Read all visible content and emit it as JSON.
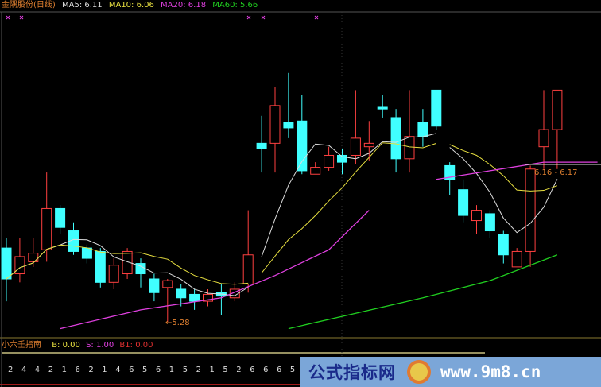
{
  "header": {
    "title": "金隅股份(日线)",
    "ma5": "MA5: 6.11",
    "ma10": "MA10: 6.06",
    "ma20": "MA20: 6.18",
    "ma60": "MA60: 5.66"
  },
  "indicator": {
    "name": "小六壬指南",
    "b": "B: 0.00",
    "s": "S: 1.00",
    "b1": "B1: 0.00",
    "values": [
      "2",
      "4",
      "4",
      "2",
      "1",
      "6",
      "2",
      "1",
      "4",
      "6",
      "5",
      "6",
      "1",
      "5",
      "2",
      "1",
      "5",
      "2",
      "6",
      "6",
      "6",
      "5"
    ]
  },
  "watermark": {
    "cn": "公式指标网",
    "url": "www.9m8.cn"
  },
  "colors": {
    "up": "#ff4040",
    "down": "#40ffff",
    "ma5": "#dddddd",
    "ma10": "#e8e040",
    "ma20": "#e040e0",
    "ma60": "#20d020",
    "background": "#000000"
  },
  "chart_data": {
    "type": "candlestick",
    "low_label": "←5.28",
    "range_label": "6.16 - 6.17",
    "ylim": [
      5.2,
      6.78
    ],
    "candles": [
      [
        5.71,
        5.77,
        5.4,
        5.53
      ],
      [
        5.56,
        5.77,
        5.51,
        5.66
      ],
      [
        5.63,
        5.77,
        5.6,
        5.68
      ],
      [
        5.7,
        6.15,
        5.63,
        5.94
      ],
      [
        5.94,
        5.96,
        5.79,
        5.83
      ],
      [
        5.81,
        5.86,
        5.67,
        5.69
      ],
      [
        5.71,
        5.73,
        5.62,
        5.65
      ],
      [
        5.69,
        5.71,
        5.48,
        5.51
      ],
      [
        5.51,
        5.65,
        5.47,
        5.61
      ],
      [
        5.56,
        5.71,
        5.53,
        5.69
      ],
      [
        5.62,
        5.65,
        5.48,
        5.56
      ],
      [
        5.53,
        5.56,
        5.4,
        5.45
      ],
      [
        5.48,
        5.53,
        5.28,
        5.52
      ],
      [
        5.47,
        5.5,
        5.37,
        5.42
      ],
      [
        5.44,
        5.47,
        5.35,
        5.4
      ],
      [
        5.4,
        5.47,
        5.37,
        5.44
      ],
      [
        5.45,
        5.5,
        5.32,
        5.43
      ],
      [
        5.42,
        5.51,
        5.4,
        5.47
      ],
      [
        5.5,
        5.93,
        5.45,
        5.67
      ],
      [
        6.32,
        6.48,
        6.15,
        6.29
      ],
      [
        6.32,
        6.65,
        6.15,
        6.54
      ],
      [
        6.44,
        6.73,
        6.35,
        6.41
      ],
      [
        6.45,
        6.6,
        6.14,
        6.16
      ],
      [
        6.14,
        6.21,
        6.14,
        6.18
      ],
      [
        6.18,
        6.3,
        6.16,
        6.25
      ],
      [
        6.25,
        6.29,
        6.14,
        6.21
      ],
      [
        6.25,
        6.63,
        6.2,
        6.35
      ],
      [
        6.3,
        6.45,
        6.22,
        6.32
      ],
      [
        6.53,
        6.6,
        6.47,
        6.52
      ],
      [
        6.47,
        6.52,
        6.15,
        6.23
      ],
      [
        6.23,
        6.63,
        6.15,
        6.36
      ],
      [
        6.44,
        6.52,
        6.3,
        6.36
      ],
      [
        6.63,
        6.63,
        6.4,
        6.42
      ],
      [
        6.19,
        6.21,
        6.02,
        6.11
      ],
      [
        6.05,
        6.11,
        5.86,
        5.9
      ],
      [
        5.87,
        5.96,
        5.79,
        5.93
      ],
      [
        5.91,
        5.93,
        5.77,
        5.81
      ],
      [
        5.79,
        5.81,
        5.62,
        5.67
      ],
      [
        5.6,
        5.71,
        5.6,
        5.69
      ],
      [
        5.69,
        6.19,
        5.6,
        6.17
      ],
      [
        6.3,
        6.63,
        6.17,
        6.4
      ],
      [
        6.4,
        6.63,
        6.17,
        6.63
      ]
    ],
    "ma20_segments": [
      [
        [
          4,
          5.24
        ],
        [
          10,
          5.35
        ],
        [
          16,
          5.42
        ],
        [
          20,
          5.55
        ],
        [
          24,
          5.7
        ],
        [
          27,
          5.93
        ]
      ],
      [
        [
          32,
          6.11
        ],
        [
          36,
          6.16
        ],
        [
          40,
          6.21
        ],
        [
          44,
          6.21
        ]
      ]
    ],
    "ma60_segments": [
      [
        [
          21,
          5.24
        ],
        [
          26,
          5.33
        ],
        [
          31,
          5.42
        ],
        [
          36,
          5.52
        ],
        [
          41,
          5.67
        ]
      ]
    ]
  }
}
